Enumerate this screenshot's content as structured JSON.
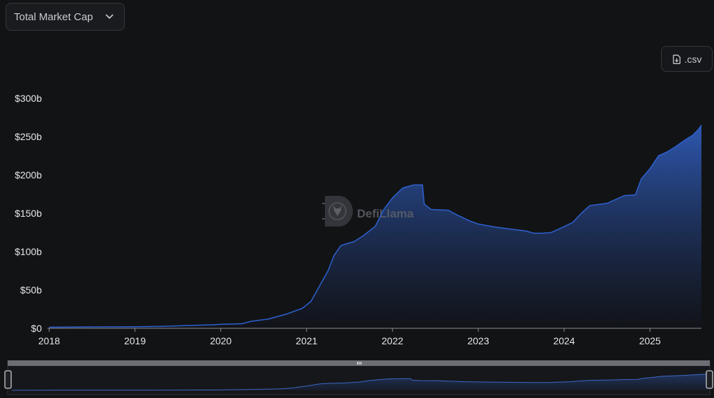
{
  "metric_select": {
    "label": "Total Market Cap"
  },
  "export": {
    "label": ".csv",
    "icon": "file-download-icon"
  },
  "watermark": {
    "text": "DefiLlama",
    "icon": "llama-logo-icon"
  },
  "colors": {
    "background": "#121315",
    "line": "#2d5ec9",
    "fill_top": "#2f5bb8",
    "fill_bottom": "#12141c"
  },
  "chart_data": {
    "type": "area",
    "title": "",
    "xlabel": "",
    "ylabel": "",
    "ylim": [
      0,
      300
    ],
    "xlim": [
      2017.98,
      2025.6
    ],
    "grid": false,
    "y_ticks": [
      {
        "value": 0,
        "label": "$0"
      },
      {
        "value": 50,
        "label": "$50b"
      },
      {
        "value": 100,
        "label": "$100b"
      },
      {
        "value": 150,
        "label": "$150b"
      },
      {
        "value": 200,
        "label": "$200b"
      },
      {
        "value": 250,
        "label": "$250b"
      },
      {
        "value": 300,
        "label": "$300b"
      }
    ],
    "x_ticks": [
      {
        "value": 2018,
        "label": "2018"
      },
      {
        "value": 2019,
        "label": "2019"
      },
      {
        "value": 2020,
        "label": "2020"
      },
      {
        "value": 2021,
        "label": "2021"
      },
      {
        "value": 2022,
        "label": "2022"
      },
      {
        "value": 2023,
        "label": "2023"
      },
      {
        "value": 2024,
        "label": "2024"
      },
      {
        "value": 2025,
        "label": "2025"
      }
    ],
    "series": [
      {
        "name": "",
        "points": [
          [
            2018.0,
            1.5
          ],
          [
            2018.5,
            1.8
          ],
          [
            2019.0,
            2.0
          ],
          [
            2019.3,
            2.5
          ],
          [
            2019.6,
            3.5
          ],
          [
            2019.9,
            4.5
          ],
          [
            2020.0,
            5.2
          ],
          [
            2020.25,
            6.0
          ],
          [
            2020.35,
            9.0
          ],
          [
            2020.55,
            12.0
          ],
          [
            2020.75,
            18.0
          ],
          [
            2020.95,
            26.0
          ],
          [
            2021.05,
            35.0
          ],
          [
            2021.15,
            55.0
          ],
          [
            2021.25,
            75.0
          ],
          [
            2021.32,
            95.0
          ],
          [
            2021.4,
            108.0
          ],
          [
            2021.55,
            113.0
          ],
          [
            2021.65,
            120.0
          ],
          [
            2021.8,
            133.0
          ],
          [
            2021.9,
            155.0
          ],
          [
            2022.0,
            170.0
          ],
          [
            2022.12,
            183.0
          ],
          [
            2022.25,
            187.0
          ],
          [
            2022.35,
            187.0
          ],
          [
            2022.37,
            162.0
          ],
          [
            2022.45,
            155.0
          ],
          [
            2022.65,
            154.0
          ],
          [
            2022.75,
            148.0
          ],
          [
            2022.9,
            140.0
          ],
          [
            2023.0,
            136.0
          ],
          [
            2023.2,
            132.0
          ],
          [
            2023.4,
            129.0
          ],
          [
            2023.55,
            127.0
          ],
          [
            2023.65,
            124.0
          ],
          [
            2023.75,
            124.0
          ],
          [
            2023.85,
            125.0
          ],
          [
            2023.95,
            130.0
          ],
          [
            2024.1,
            138.0
          ],
          [
            2024.2,
            150.0
          ],
          [
            2024.3,
            160.0
          ],
          [
            2024.5,
            163.0
          ],
          [
            2024.6,
            168.0
          ],
          [
            2024.7,
            173.0
          ],
          [
            2024.83,
            174.0
          ],
          [
            2024.9,
            195.0
          ],
          [
            2025.0,
            208.0
          ],
          [
            2025.1,
            225.0
          ],
          [
            2025.2,
            230.0
          ],
          [
            2025.3,
            237.0
          ],
          [
            2025.4,
            245.0
          ],
          [
            2025.5,
            252.0
          ],
          [
            2025.57,
            260.0
          ],
          [
            2025.6,
            265.0
          ]
        ]
      }
    ]
  }
}
